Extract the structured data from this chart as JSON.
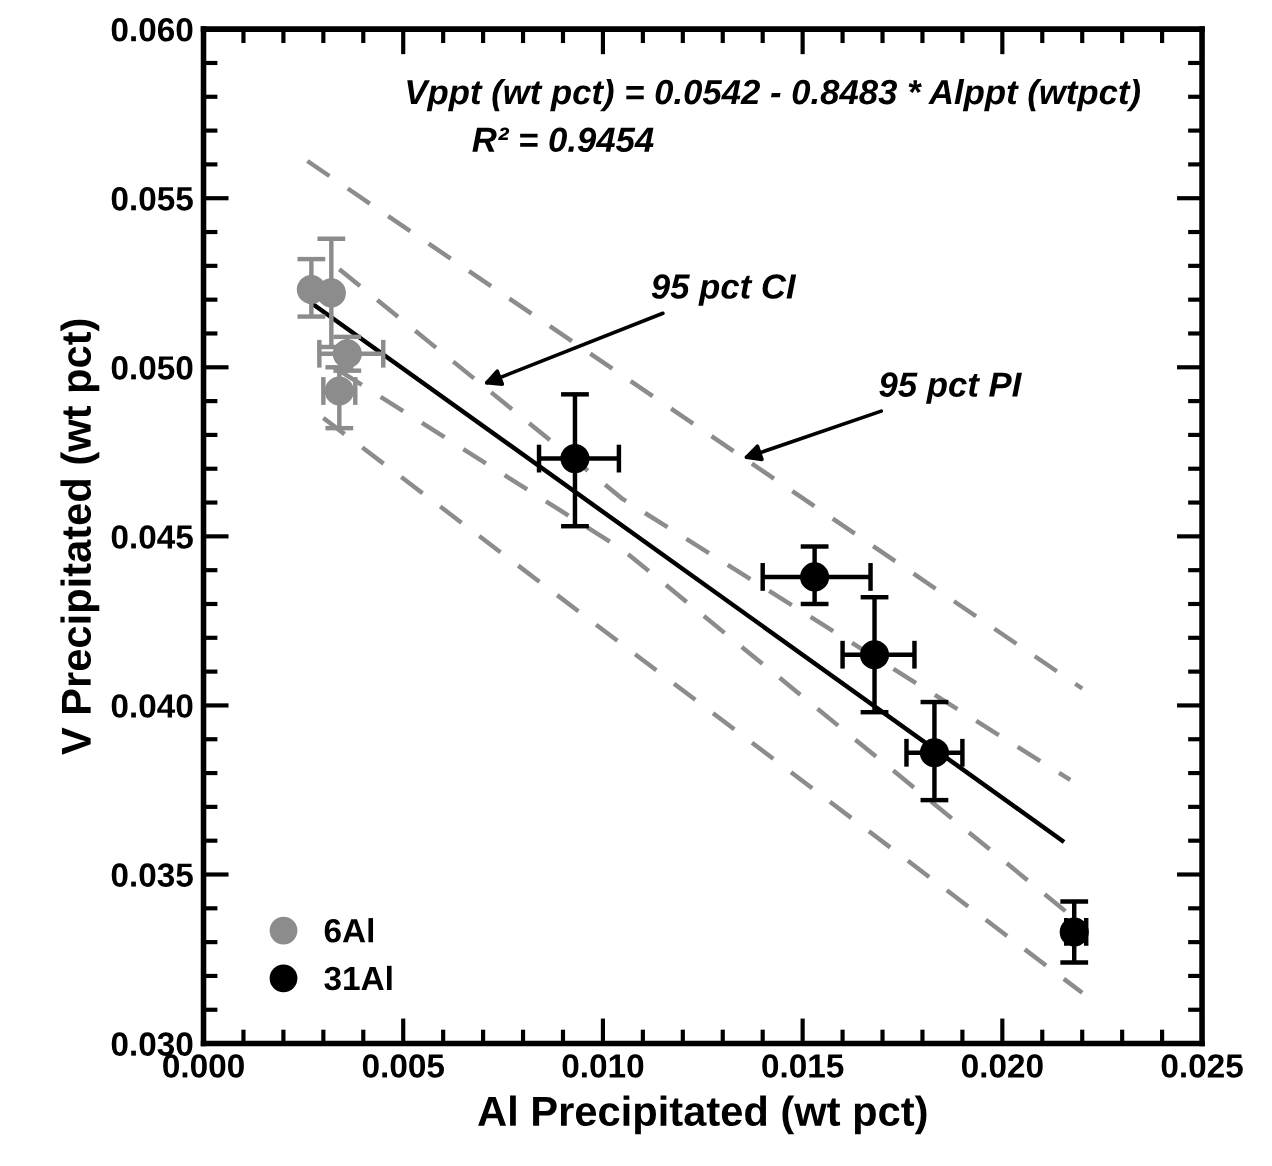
{
  "chart_data": {
    "type": "scatter",
    "xlabel": "Al Precipitated (wt pct)",
    "ylabel": "V Precipitated (wt pct)",
    "xlim": [
      0.0,
      0.025
    ],
    "ylim": [
      0.03,
      0.06
    ],
    "xticks": [
      {
        "value": 0.0,
        "label": "0.000"
      },
      {
        "value": 0.005,
        "label": "0.005"
      },
      {
        "value": 0.01,
        "label": "0.010"
      },
      {
        "value": 0.015,
        "label": "0.015"
      },
      {
        "value": 0.02,
        "label": "0.020"
      },
      {
        "value": 0.025,
        "label": "0.025"
      }
    ],
    "yticks": [
      {
        "value": 0.03,
        "label": "0.030"
      },
      {
        "value": 0.035,
        "label": "0.035"
      },
      {
        "value": 0.04,
        "label": "0.040"
      },
      {
        "value": 0.045,
        "label": "0.045"
      },
      {
        "value": 0.05,
        "label": "0.050"
      },
      {
        "value": 0.055,
        "label": "0.055"
      },
      {
        "value": 0.06,
        "label": "0.060"
      }
    ],
    "grid": false,
    "legend": "bottom left",
    "series": [
      {
        "name": "6Al",
        "marker": "circle",
        "color": "#8c8c8c",
        "x": [
          0.0027,
          0.0032,
          0.0036,
          0.0034
        ],
        "values": [
          0.0523,
          0.0522,
          0.0504,
          0.0493
        ],
        "errors": [
          [
            0.0515,
            0.0532
          ],
          [
            0.0506,
            0.0538
          ],
          [
            0.0499,
            0.0509
          ],
          [
            0.0482,
            0.05
          ]
        ],
        "xerrors": [
          null,
          null,
          [
            0.0029,
            0.0045
          ],
          [
            0.003,
            0.0038
          ]
        ]
      },
      {
        "name": "31Al",
        "marker": "circle",
        "color": "#000000",
        "x": [
          0.0093,
          0.0153,
          0.0168,
          0.0183,
          0.0218
        ],
        "values": [
          0.0473,
          0.0438,
          0.0415,
          0.0386,
          0.0333
        ],
        "errors": [
          [
            0.0453,
            0.0492
          ],
          [
            0.043,
            0.0447
          ],
          [
            0.0398,
            0.0432
          ],
          [
            0.0372,
            0.0401
          ],
          [
            0.0324,
            0.0342
          ]
        ],
        "xerrors": [
          [
            0.0084,
            0.0104
          ],
          [
            0.014,
            0.0167
          ],
          [
            0.016,
            0.0178
          ],
          [
            0.0176,
            0.019
          ],
          [
            0.0216,
            0.0221
          ]
        ]
      },
      {
        "type": "line",
        "color": "#000000",
        "line_style": "solid",
        "x": [
          0.0027,
          0.0215
        ],
        "values": [
          0.0519,
          0.036
        ]
      },
      {
        "type": "line",
        "color": "#8c8c8c",
        "line_style": "dashed",
        "x": [
          0.0034,
          0.0105,
          0.0217
        ],
        "values": [
          0.0529,
          0.0461,
          0.0378
        ]
      },
      {
        "type": "line",
        "color": "#8c8c8c",
        "line_style": "dashed",
        "x": [
          0.0034,
          0.0105,
          0.0217
        ],
        "values": [
          0.0499,
          0.0446,
          0.0338
        ]
      },
      {
        "type": "line",
        "color": "#8c8c8c",
        "line_style": "dashed",
        "x": [
          0.0026,
          0.022
        ],
        "values": [
          0.0561,
          0.0405
        ]
      },
      {
        "type": "line",
        "color": "#8c8c8c",
        "line_style": "dashed",
        "x": [
          0.003,
          0.022
        ],
        "values": [
          0.0485,
          0.0315
        ]
      }
    ],
    "annotations": [
      "Vppt (wt pct) = 0.0542 - 0.8483 * Alppt (wtpct)",
      "R² = 0.9454",
      {
        "text": "95 pct CI",
        "x": 0.007,
        "y": 0.0495
      },
      {
        "text": "95 pct PI",
        "x": 0.0135,
        "y": 0.0473
      }
    ]
  }
}
